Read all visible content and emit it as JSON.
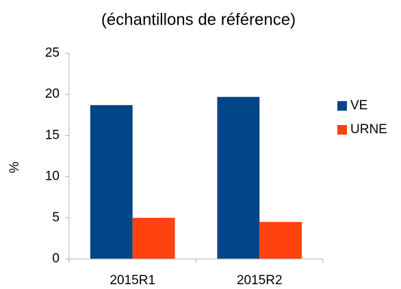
{
  "chart_data": {
    "type": "bar",
    "title": "(échantillons de référence)",
    "y_label": "%",
    "categories": [
      "2015R1",
      "2015R2"
    ],
    "series": [
      {
        "name": "VE",
        "color": "#004586",
        "values": [
          18.7,
          19.7
        ]
      },
      {
        "name": "URNE",
        "color": "#ff420e",
        "values": [
          5.0,
          4.5
        ]
      }
    ],
    "ylim": [
      0,
      25
    ],
    "yticks": [
      0,
      5,
      10,
      15,
      20,
      25
    ],
    "grid": false,
    "legend": "right"
  }
}
